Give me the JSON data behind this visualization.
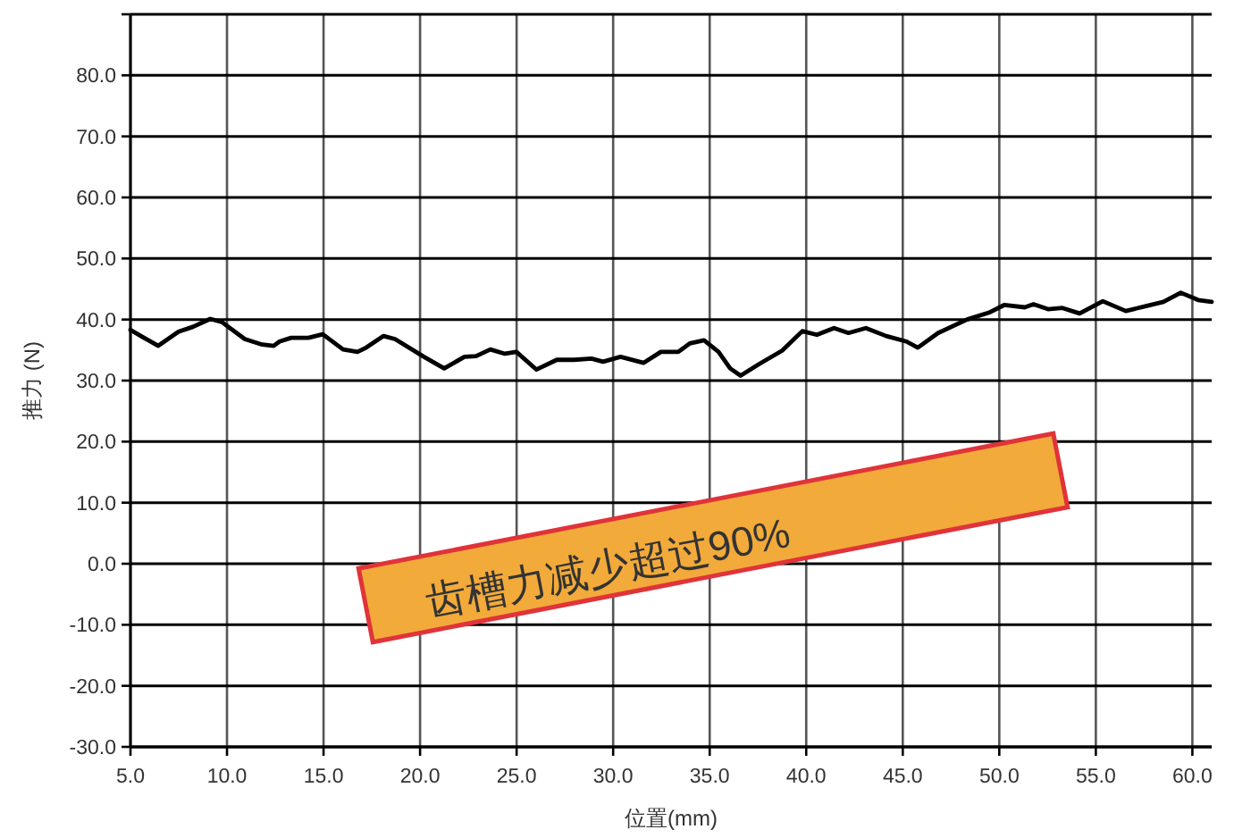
{
  "chart_data": {
    "type": "line",
    "xlabel": "位置(mm)",
    "ylabel": "推力 (N)",
    "x": [
      5.0,
      5.54,
      6.44,
      7.49,
      8.23,
      9.13,
      9.73,
      10.92,
      11.82,
      12.42,
      12.72,
      13.32,
      14.22,
      14.96,
      16.01,
      16.76,
      17.21,
      18.11,
      18.7,
      20.2,
      21.25,
      22.3,
      22.9,
      23.64,
      24.39,
      24.99,
      26.03,
      27.08,
      27.98,
      28.88,
      29.48,
      30.38,
      31.57,
      32.47,
      33.37,
      33.97,
      34.71,
      35.46,
      36.06,
      36.6,
      37.56,
      38.75,
      39.8,
      40.55,
      41.44,
      42.19,
      43.09,
      44.14,
      45.19,
      45.78,
      46.83,
      48.33,
      49.52,
      50.27,
      51.32,
      51.77,
      52.52,
      53.27,
      54.16,
      55.36,
      56.55,
      57.6,
      58.5,
      59.4,
      60.3,
      61.0
    ],
    "series": [
      {
        "color": "#000000",
        "values": [
          38.3,
          37.3,
          35.7,
          38.0,
          38.8,
          40.1,
          39.6,
          36.8,
          35.9,
          35.7,
          36.4,
          37.0,
          37.0,
          37.6,
          35.1,
          34.7,
          35.4,
          37.3,
          36.8,
          33.9,
          32.0,
          33.9,
          34.0,
          35.1,
          34.4,
          34.7,
          31.8,
          33.4,
          33.4,
          33.6,
          33.1,
          33.9,
          32.9,
          34.7,
          34.7,
          36.1,
          36.6,
          34.7,
          32.0,
          30.8,
          32.7,
          34.9,
          38.1,
          37.5,
          38.6,
          37.8,
          38.6,
          37.3,
          36.4,
          35.4,
          37.8,
          40.0,
          41.2,
          42.4,
          42.0,
          42.5,
          41.7,
          41.9,
          41.0,
          43.0,
          41.4,
          42.2,
          42.9,
          44.4,
          43.2,
          42.9
        ]
      }
    ],
    "xlim": [
      5,
      61
    ],
    "xticks": [
      {
        "value": 5,
        "label": "5.0"
      },
      {
        "value": 10,
        "label": "10.0"
      },
      {
        "value": 15,
        "label": "15.0"
      },
      {
        "value": 20,
        "label": "20.0"
      },
      {
        "value": 25,
        "label": "25.0"
      },
      {
        "value": 30,
        "label": "30.0"
      },
      {
        "value": 35,
        "label": "35.0"
      },
      {
        "value": 40,
        "label": "40.0"
      },
      {
        "value": 45,
        "label": "45.0"
      },
      {
        "value": 50,
        "label": "50.0"
      },
      {
        "value": 55,
        "label": "55.0"
      },
      {
        "value": 60,
        "label": "60.0"
      }
    ],
    "ylim": [
      -30,
      90
    ],
    "yticks": [
      {
        "value": -30,
        "label": "-30.0"
      },
      {
        "value": -20,
        "label": "-20.0"
      },
      {
        "value": -10,
        "label": "-10.0"
      },
      {
        "value": 0,
        "label": "0.0"
      },
      {
        "value": 10,
        "label": "10.0"
      },
      {
        "value": 20,
        "label": "20.0"
      },
      {
        "value": 30,
        "label": "30.0"
      },
      {
        "value": 40,
        "label": "40.0"
      },
      {
        "value": 50,
        "label": "50.0"
      },
      {
        "value": 60,
        "label": "60.0"
      },
      {
        "value": 70,
        "label": "70.0"
      },
      {
        "value": 80,
        "label": "80.0"
      },
      {
        "value": 90,
        "label": null
      }
    ],
    "grid": true,
    "annotations": [
      "齿槽力减少超过90%"
    ]
  }
}
